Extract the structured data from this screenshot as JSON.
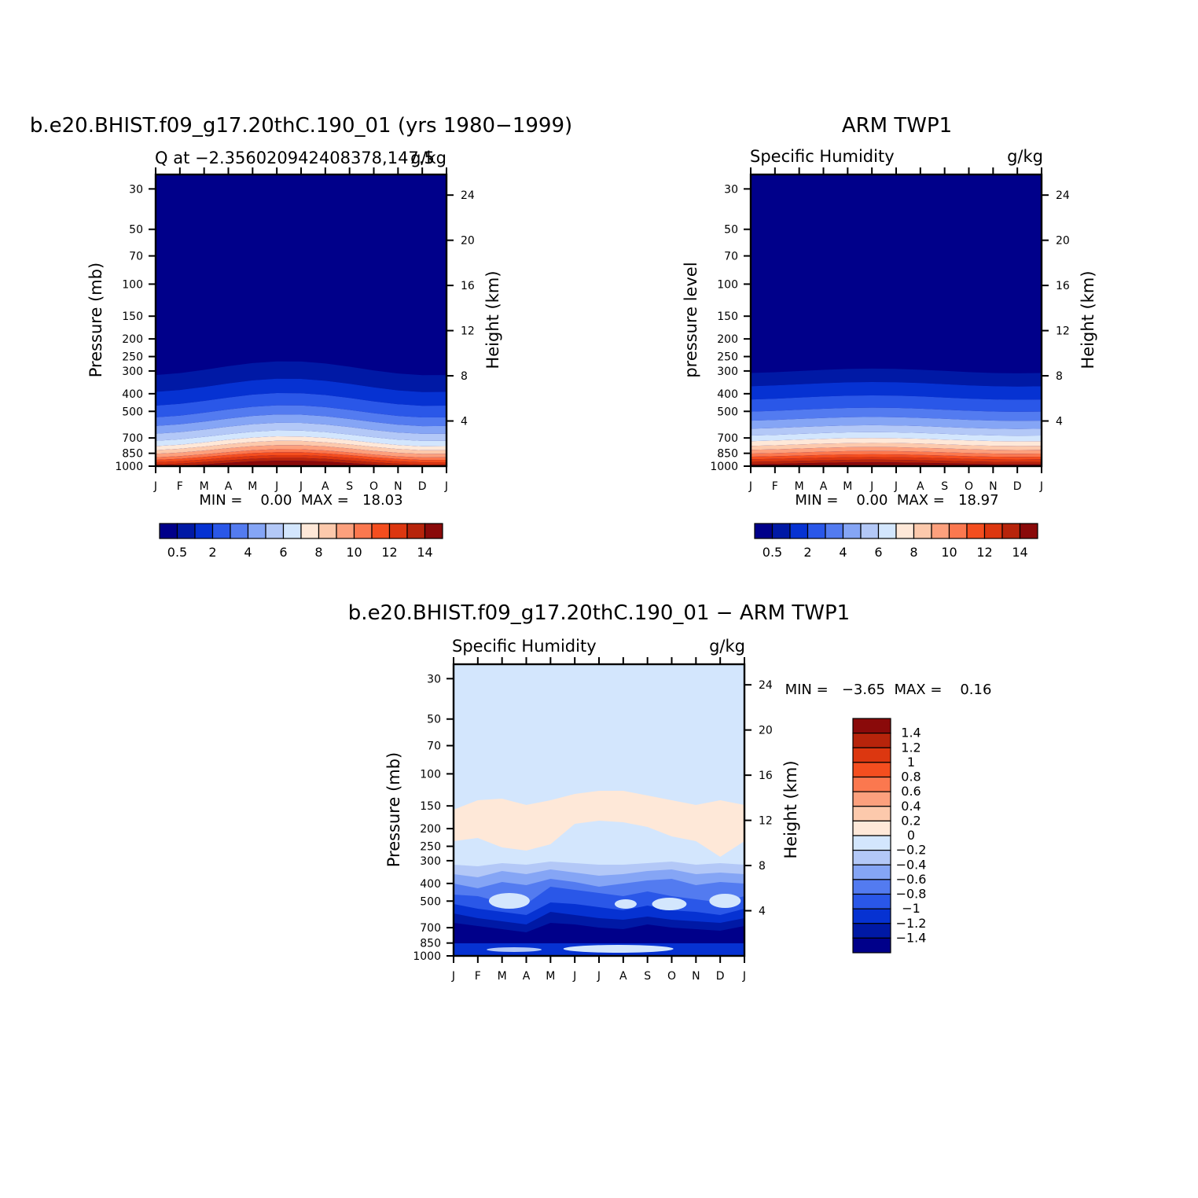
{
  "colors": {
    "q_levels": [
      "#00008a",
      "#0019a5",
      "#0632d2",
      "#2a57e8",
      "#537bf0",
      "#85a5f5",
      "#b3c8f7",
      "#d3e6fd",
      "#fee8d8",
      "#fcc9ac",
      "#fca07d",
      "#fb784f",
      "#f44e1f",
      "#dc3710",
      "#b7240b",
      "#8a0a0a"
    ],
    "diff_levels": [
      "#00008a",
      "#0019a5",
      "#0632d2",
      "#2a57e8",
      "#537bf0",
      "#85a5f5",
      "#b3c8f7",
      "#d3e6fd",
      "#fee8d8",
      "#fcc9ac",
      "#fca07d",
      "#fb784f",
      "#f44e1f",
      "#dc3710",
      "#b7240b",
      "#8a0a0a"
    ]
  },
  "panels": {
    "model": {
      "title": "b.e20.BHIST.f09_g17.20thC.190_01 (yrs 1980−1999)",
      "left_string": "Q at −2.356020942408378,147.5",
      "right_string": "g/kg",
      "ylabel": "Pressure (mb)",
      "ylabel_right": "Height (km)",
      "minmax": "MIN =    0.00  MAX =   18.03"
    },
    "obs": {
      "title": "ARM TWP1",
      "left_string": "Specific Humidity",
      "right_string": "g/kg",
      "ylabel": "pressure level",
      "ylabel_right": "Height (km)",
      "minmax": "MIN =    0.00  MAX =   18.97"
    },
    "diff": {
      "title": "b.e20.BHIST.f09_g17.20thC.190_01 − ARM TWP1",
      "left_string": "Specific Humidity",
      "right_string": "g/kg",
      "ylabel": "Pressure (mb)",
      "ylabel_right": "Height (km)",
      "minmax": "MIN =   −3.65  MAX =    0.16"
    }
  },
  "chart_data": [
    {
      "type": "heatmap",
      "title": "b.e20.BHIST.f09_g17.20thC.190_01 (yrs 1980−1999)",
      "x_ticks": [
        "J",
        "F",
        "M",
        "A",
        "M",
        "J",
        "J",
        "A",
        "S",
        "O",
        "N",
        "D",
        "J"
      ],
      "y_ticks": [
        "30",
        "50",
        "70",
        "100",
        "150",
        "200",
        "250",
        "300",
        "400",
        "500",
        "700",
        "850",
        "1000"
      ],
      "y_ticks_right": [
        "24",
        "20",
        "16",
        "12",
        "8",
        "4"
      ],
      "ylim": [
        1000,
        25
      ],
      "colorbar": {
        "labels": [
          "0.5",
          "2",
          "4",
          "6",
          "8",
          "10",
          "12",
          "14"
        ]
      },
      "min": 0.0,
      "max": 18.03,
      "y_scale": "log"
    },
    {
      "type": "heatmap",
      "title": "ARM TWP1",
      "x_ticks": [
        "J",
        "F",
        "M",
        "A",
        "M",
        "J",
        "J",
        "A",
        "S",
        "O",
        "N",
        "D",
        "J"
      ],
      "y_ticks": [
        "30",
        "50",
        "70",
        "100",
        "150",
        "200",
        "250",
        "300",
        "400",
        "500",
        "700",
        "850",
        "1000"
      ],
      "y_ticks_right": [
        "24",
        "20",
        "16",
        "12",
        "8",
        "4"
      ],
      "ylim": [
        1000,
        25
      ],
      "colorbar": {
        "labels": [
          "0.5",
          "2",
          "4",
          "6",
          "8",
          "10",
          "12",
          "14"
        ]
      },
      "min": 0.0,
      "max": 18.97,
      "y_scale": "log"
    },
    {
      "type": "heatmap",
      "title": "b.e20.BHIST.f09_g17.20thC.190_01 − ARM TWP1",
      "x_ticks": [
        "J",
        "F",
        "M",
        "A",
        "M",
        "J",
        "J",
        "A",
        "S",
        "O",
        "N",
        "D",
        "J"
      ],
      "y_ticks": [
        "30",
        "50",
        "70",
        "100",
        "150",
        "200",
        "250",
        "300",
        "400",
        "500",
        "700",
        "850",
        "1000"
      ],
      "y_ticks_right": [
        "24",
        "20",
        "16",
        "12",
        "8",
        "4"
      ],
      "ylim": [
        1000,
        25
      ],
      "colorbar": {
        "labels": [
          "1.4",
          "1.2",
          "1",
          "0.8",
          "0.6",
          "0.4",
          "0.2",
          "0",
          "−0.2",
          "−0.4",
          "−0.6",
          "−0.8",
          "−1",
          "−1.2",
          "−1.4"
        ]
      },
      "min": -3.65,
      "max": 0.16,
      "y_scale": "log"
    }
  ]
}
